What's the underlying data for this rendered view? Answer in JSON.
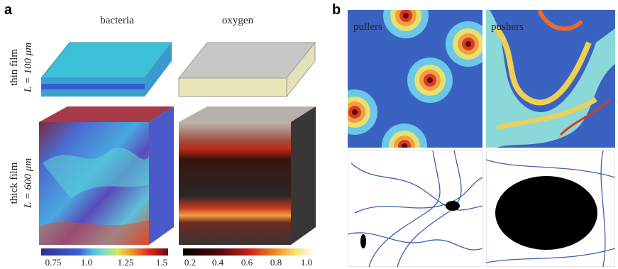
{
  "panel_a": {
    "label": "a",
    "columns": [
      "bacteria",
      "oxygen"
    ],
    "rows": [
      {
        "name": "thin film",
        "size": "L = 100 μm"
      },
      {
        "name": "thick film",
        "size": "L = 600 μm"
      }
    ],
    "colorbars": [
      {
        "ticks": [
          "0.75",
          "1.0",
          "1.25",
          "1.5"
        ]
      },
      {
        "ticks": [
          "0.2",
          "0.4",
          "0.6",
          "0.8",
          "1.0"
        ]
      }
    ]
  },
  "panel_b": {
    "label": "b",
    "columns": [
      "pullers",
      "pushers"
    ]
  }
}
